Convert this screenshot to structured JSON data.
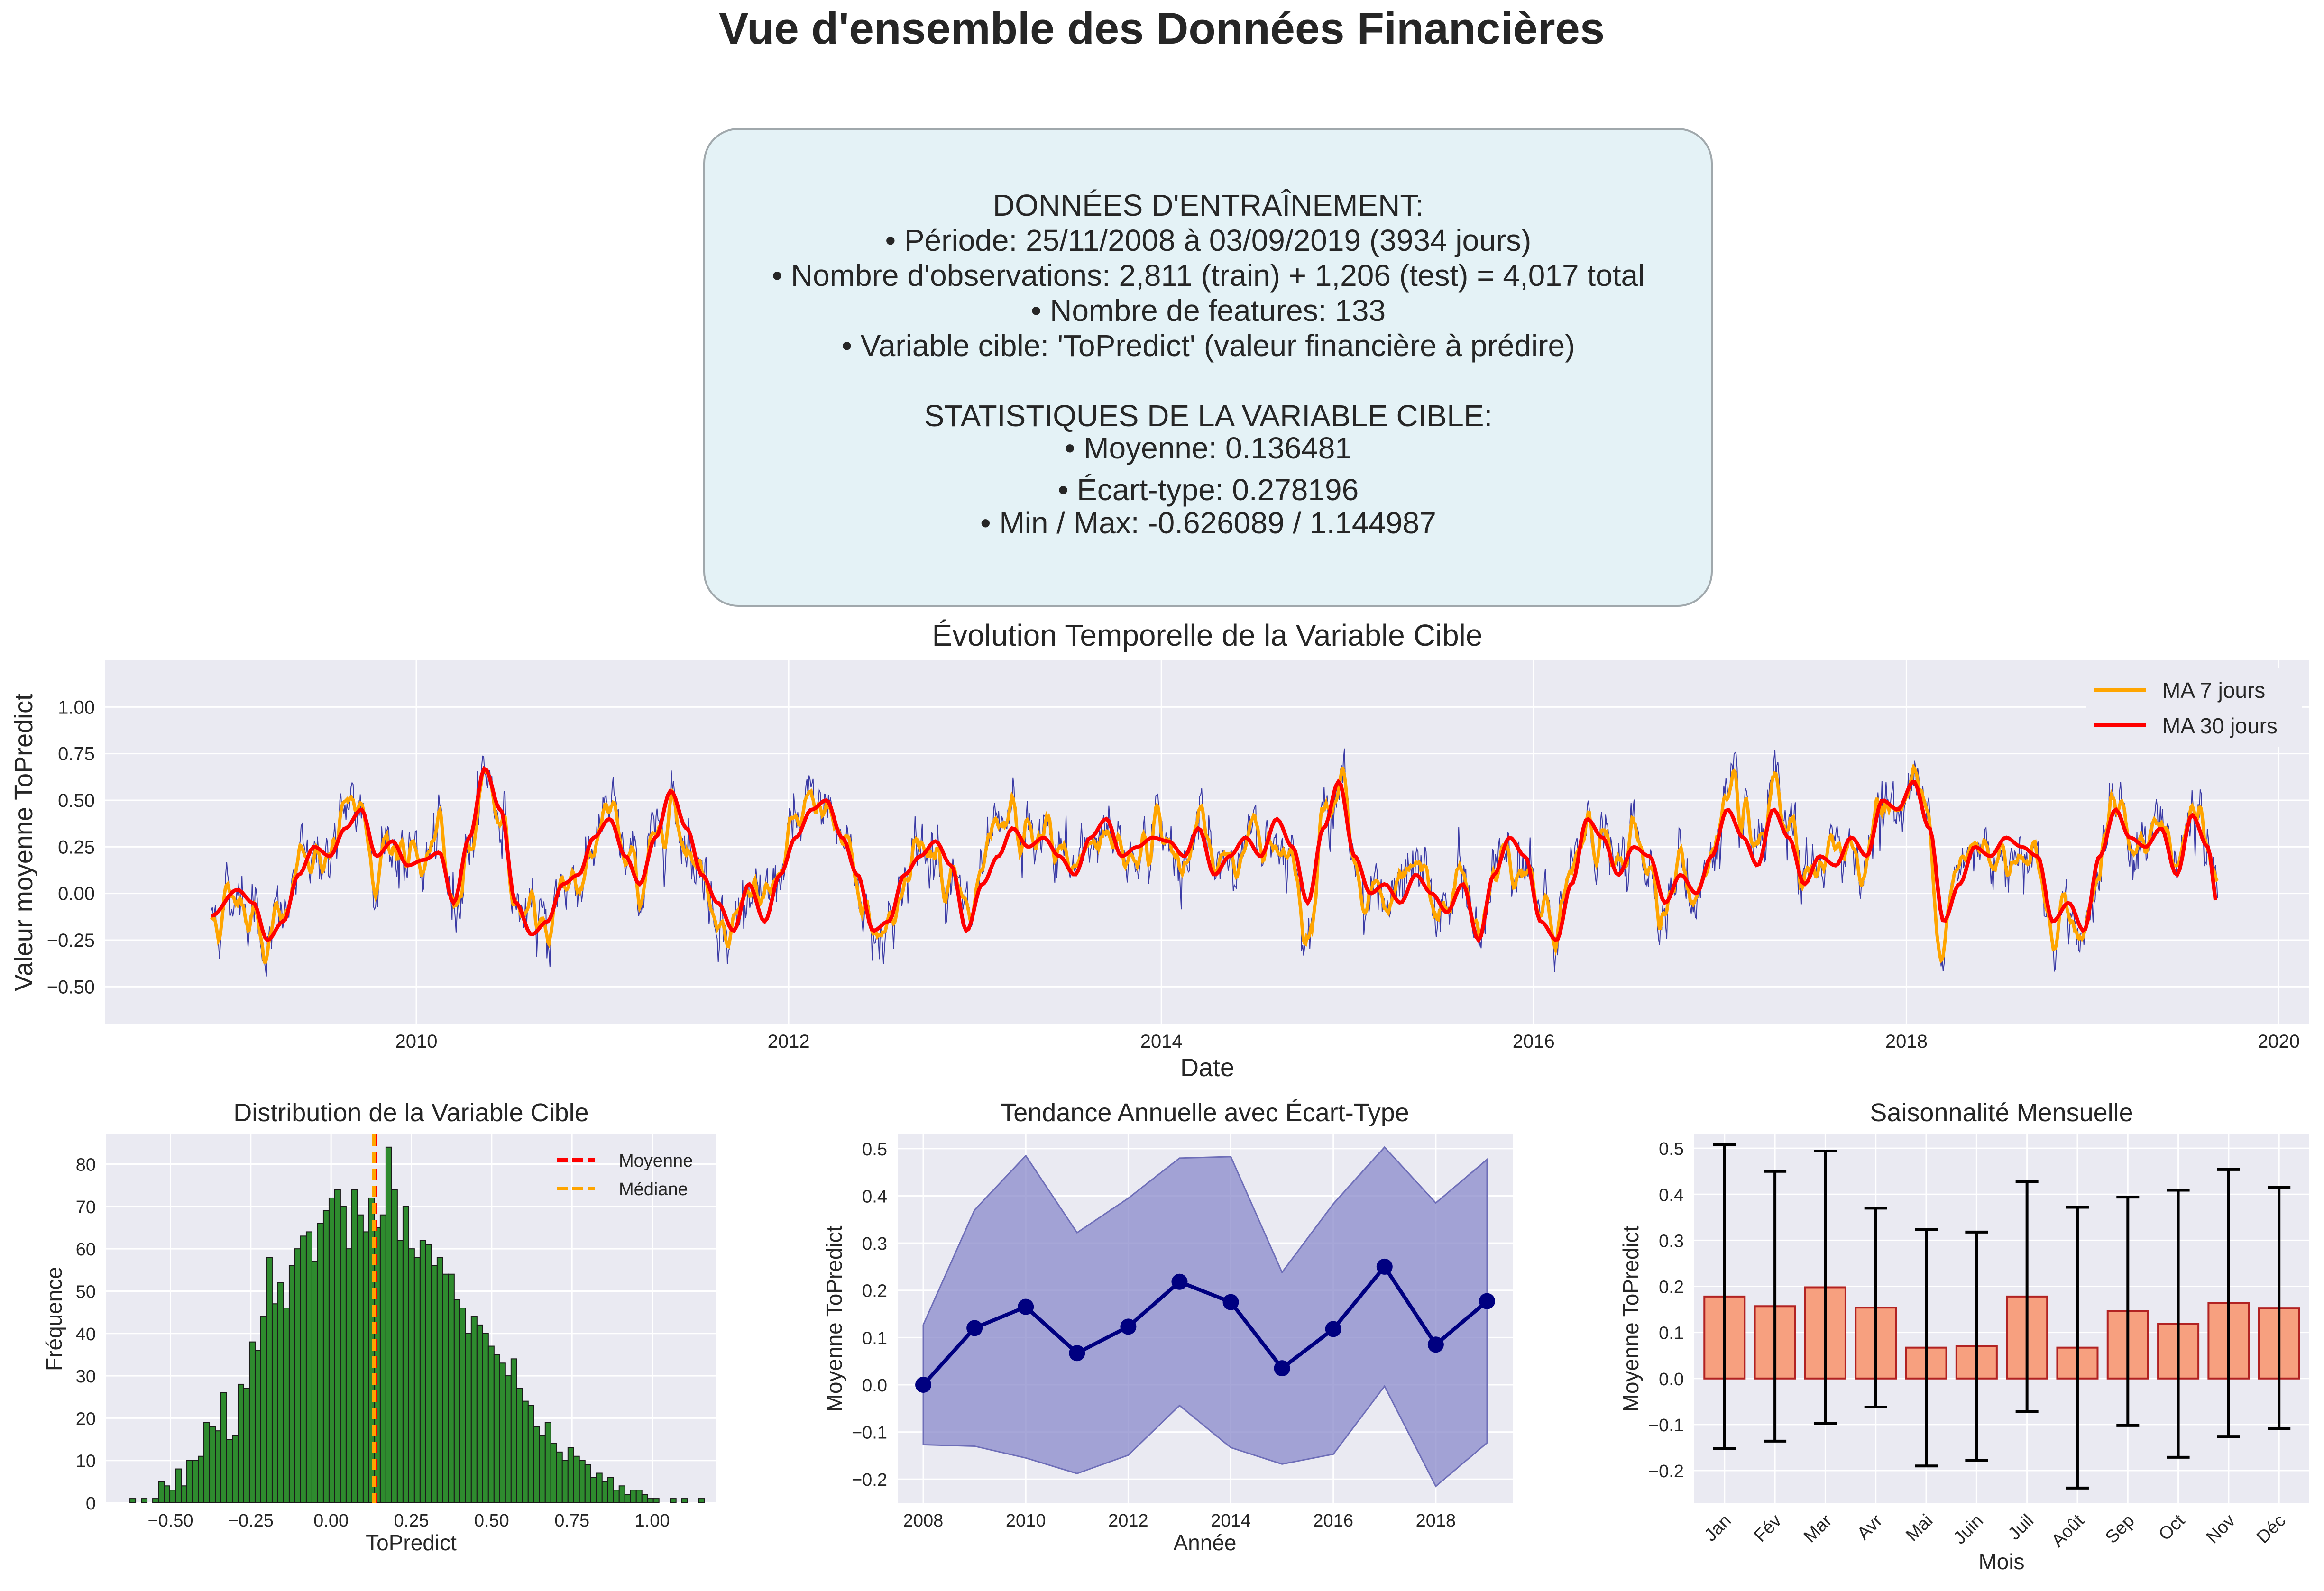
{
  "page_title": "Vue d'ensemble des Données Financières",
  "info_box": {
    "lines": [
      "DONNÉES D'ENTRAÎNEMENT:",
      "• Période: 25/11/2008 à 03/09/2019 (3934 jours)",
      "• Nombre d'observations: 2,811 (train) + 1,206 (test) = 4,017 total",
      "• Nombre de features: 133",
      "• Variable cible: 'ToPredict' (valeur financière à prédire)",
      "",
      "STATISTIQUES DE LA VARIABLE CIBLE:",
      "• Moyenne: 0.136481",
      "• Écart-type: 0.278196",
      "• Min / Max: -0.626089 / 1.144987"
    ],
    "background": "#e4f2f6"
  },
  "chart_data": [
    {
      "type": "line",
      "title": "Évolution Temporelle de la Variable Cible",
      "xlabel": "Date",
      "ylabel": "Valeur moyenne ToPredict",
      "xlim": [
        "2008-05-01",
        "2020-03-01"
      ],
      "ylim": [
        -0.7,
        1.25
      ],
      "x_ticks": [
        "2010",
        "2012",
        "2014",
        "2016",
        "2018",
        "2020"
      ],
      "y_ticks": [
        -0.5,
        -0.25,
        0.0,
        0.25,
        0.5,
        0.75,
        1.0
      ],
      "y_tick_labels": [
        "−0.50",
        "−0.25",
        "0.00",
        "0.25",
        "0.50",
        "0.75",
        "1.00"
      ],
      "x_start": "2008-11-25",
      "x_end": "2019-09-03",
      "grid": true,
      "legend": "top-right",
      "series": [
        {
          "color": "#00008b"
        },
        {
          "name": "MA 7 jours",
          "color": "#ffa500"
        },
        {
          "name": "MA 30 jours",
          "color": "#ff0000"
        }
      ],
      "ma30_points": [
        [
          "2008-12",
          -0.12
        ],
        [
          "2009-01",
          0.02
        ],
        [
          "2009-02",
          -0.05
        ],
        [
          "2009-03",
          -0.25
        ],
        [
          "2009-04",
          -0.15
        ],
        [
          "2009-05",
          0.1
        ],
        [
          "2009-06",
          0.25
        ],
        [
          "2009-07",
          0.2
        ],
        [
          "2009-08",
          0.35
        ],
        [
          "2009-09",
          0.45
        ],
        [
          "2009-10",
          0.2
        ],
        [
          "2009-11",
          0.28
        ],
        [
          "2009-12",
          0.15
        ],
        [
          "2010-01",
          0.18
        ],
        [
          "2010-02",
          0.22
        ],
        [
          "2010-03",
          -0.05
        ],
        [
          "2010-04",
          0.3
        ],
        [
          "2010-05",
          0.67
        ],
        [
          "2010-06",
          0.45
        ],
        [
          "2010-07",
          -0.05
        ],
        [
          "2010-08",
          -0.22
        ],
        [
          "2010-09",
          -0.15
        ],
        [
          "2010-10",
          0.05
        ],
        [
          "2010-11",
          0.1
        ],
        [
          "2010-12",
          0.3
        ],
        [
          "2011-01",
          0.4
        ],
        [
          "2011-02",
          0.2
        ],
        [
          "2011-03",
          0.05
        ],
        [
          "2011-04",
          0.3
        ],
        [
          "2011-05",
          0.55
        ],
        [
          "2011-06",
          0.35
        ],
        [
          "2011-07",
          0.1
        ],
        [
          "2011-08",
          -0.05
        ],
        [
          "2011-09",
          -0.2
        ],
        [
          "2011-10",
          0.05
        ],
        [
          "2011-11",
          -0.15
        ],
        [
          "2011-12",
          0.1
        ],
        [
          "2012-01",
          0.3
        ],
        [
          "2012-02",
          0.45
        ],
        [
          "2012-03",
          0.5
        ],
        [
          "2012-04",
          0.3
        ],
        [
          "2012-05",
          0.1
        ],
        [
          "2012-06",
          -0.2
        ],
        [
          "2012-07",
          -0.15
        ],
        [
          "2012-08",
          0.1
        ],
        [
          "2012-09",
          0.2
        ],
        [
          "2012-10",
          0.28
        ],
        [
          "2012-11",
          0.15
        ],
        [
          "2012-12",
          -0.2
        ],
        [
          "2013-01",
          0.05
        ],
        [
          "2013-02",
          0.2
        ],
        [
          "2013-03",
          0.35
        ],
        [
          "2013-04",
          0.25
        ],
        [
          "2013-05",
          0.3
        ],
        [
          "2013-06",
          0.2
        ],
        [
          "2013-07",
          0.1
        ],
        [
          "2013-08",
          0.3
        ],
        [
          "2013-09",
          0.4
        ],
        [
          "2013-10",
          0.2
        ],
        [
          "2013-11",
          0.25
        ],
        [
          "2013-12",
          0.3
        ],
        [
          "2014-01",
          0.28
        ],
        [
          "2014-02",
          0.2
        ],
        [
          "2014-03",
          0.35
        ],
        [
          "2014-04",
          0.1
        ],
        [
          "2014-05",
          0.2
        ],
        [
          "2014-06",
          0.3
        ],
        [
          "2014-07",
          0.2
        ],
        [
          "2014-08",
          0.4
        ],
        [
          "2014-09",
          0.25
        ],
        [
          "2014-10",
          -0.05
        ],
        [
          "2014-11",
          0.35
        ],
        [
          "2014-12",
          0.6
        ],
        [
          "2015-01",
          0.2
        ],
        [
          "2015-02",
          0.0
        ],
        [
          "2015-03",
          0.05
        ],
        [
          "2015-04",
          -0.05
        ],
        [
          "2015-05",
          0.1
        ],
        [
          "2015-06",
          0.0
        ],
        [
          "2015-07",
          -0.1
        ],
        [
          "2015-08",
          0.05
        ],
        [
          "2015-09",
          -0.25
        ],
        [
          "2015-10",
          0.1
        ],
        [
          "2015-11",
          0.3
        ],
        [
          "2015-12",
          0.2
        ],
        [
          "2016-01",
          -0.15
        ],
        [
          "2016-02",
          -0.25
        ],
        [
          "2016-03",
          0.05
        ],
        [
          "2016-04",
          0.4
        ],
        [
          "2016-05",
          0.3
        ],
        [
          "2016-06",
          0.1
        ],
        [
          "2016-07",
          0.25
        ],
        [
          "2016-08",
          0.2
        ],
        [
          "2016-09",
          -0.05
        ],
        [
          "2016-10",
          0.1
        ],
        [
          "2016-11",
          0.0
        ],
        [
          "2016-12",
          0.2
        ],
        [
          "2017-01",
          0.45
        ],
        [
          "2017-02",
          0.3
        ],
        [
          "2017-03",
          0.15
        ],
        [
          "2017-04",
          0.45
        ],
        [
          "2017-05",
          0.3
        ],
        [
          "2017-06",
          0.05
        ],
        [
          "2017-07",
          0.2
        ],
        [
          "2017-08",
          0.15
        ],
        [
          "2017-09",
          0.3
        ],
        [
          "2017-10",
          0.2
        ],
        [
          "2017-11",
          0.5
        ],
        [
          "2017-12",
          0.45
        ],
        [
          "2018-01",
          0.6
        ],
        [
          "2018-02",
          0.35
        ],
        [
          "2018-03",
          -0.15
        ],
        [
          "2018-04",
          0.05
        ],
        [
          "2018-05",
          0.25
        ],
        [
          "2018-06",
          0.2
        ],
        [
          "2018-07",
          0.3
        ],
        [
          "2018-08",
          0.25
        ],
        [
          "2018-09",
          0.2
        ],
        [
          "2018-10",
          -0.15
        ],
        [
          "2018-11",
          -0.05
        ],
        [
          "2018-12",
          -0.2
        ],
        [
          "2019-01",
          0.2
        ],
        [
          "2019-02",
          0.45
        ],
        [
          "2019-03",
          0.3
        ],
        [
          "2019-04",
          0.25
        ],
        [
          "2019-05",
          0.35
        ],
        [
          "2019-06",
          0.1
        ],
        [
          "2019-07",
          0.42
        ],
        [
          "2019-08",
          0.25
        ],
        [
          "2019-09",
          -0.07
        ]
      ]
    },
    {
      "type": "bar",
      "title": "Distribution de la Variable Cible",
      "xlabel": "ToPredict",
      "ylabel": "Fréquence",
      "xlim": [
        -0.7,
        1.2
      ],
      "ylim": [
        0,
        87
      ],
      "x_ticks": [
        -0.5,
        -0.25,
        0.0,
        0.25,
        0.5,
        0.75,
        1.0
      ],
      "x_tick_labels": [
        "−0.50",
        "−0.25",
        "0.00",
        "0.25",
        "0.50",
        "0.75",
        "1.00"
      ],
      "y_ticks": [
        0,
        10,
        20,
        30,
        40,
        50,
        60,
        70,
        80
      ],
      "bin_start": -0.626089,
      "bin_width": 0.01771,
      "counts": [
        1,
        0,
        1,
        0,
        1,
        5,
        4,
        3,
        8,
        4,
        10,
        10,
        11,
        19,
        18,
        17,
        26,
        15,
        16,
        28,
        27,
        38,
        36,
        44,
        58,
        47,
        52,
        46,
        56,
        60,
        63,
        64,
        57,
        66,
        69,
        72,
        74,
        70,
        60,
        74,
        68,
        64,
        72,
        65,
        68,
        84,
        74,
        62,
        70,
        60,
        58,
        62,
        61,
        56,
        58,
        54,
        54,
        48,
        46,
        40,
        44,
        42,
        40,
        37,
        35,
        33,
        30,
        34,
        27,
        24,
        23,
        18,
        16,
        19,
        14,
        12,
        10,
        13,
        11,
        10,
        9,
        6,
        7,
        5,
        6,
        3,
        4,
        2,
        3,
        3,
        2,
        1,
        1,
        0,
        0,
        1,
        0,
        1,
        0,
        0,
        1
      ],
      "bar_color": "#2e8b2e",
      "lines": [
        {
          "name": "Moyenne",
          "value": 0.136481,
          "color": "#ff0000"
        },
        {
          "name": "Médiane",
          "value": 0.133,
          "color": "#ffa500"
        }
      ],
      "legend": "top-right",
      "grid": true
    },
    {
      "type": "line",
      "title": "Tendance Annuelle avec Écart-Type",
      "xlabel": "Année",
      "ylabel": "Moyenne ToPredict",
      "xlim": [
        2007.5,
        2019.5
      ],
      "ylim": [
        -0.25,
        0.53
      ],
      "x_ticks": [
        2008,
        2010,
        2012,
        2014,
        2016,
        2018
      ],
      "y_ticks": [
        -0.2,
        -0.1,
        0.0,
        0.1,
        0.2,
        0.3,
        0.4,
        0.5
      ],
      "y_tick_labels": [
        "−0.2",
        "−0.1",
        "0.0",
        "0.1",
        "0.2",
        "0.3",
        "0.4",
        "0.5"
      ],
      "x": [
        2008,
        2009,
        2010,
        2011,
        2012,
        2013,
        2014,
        2015,
        2016,
        2017,
        2018,
        2019
      ],
      "mean": [
        0.0,
        0.12,
        0.165,
        0.067,
        0.123,
        0.218,
        0.175,
        0.035,
        0.118,
        0.25,
        0.085,
        0.177
      ],
      "upper": [
        0.127,
        0.37,
        0.485,
        0.322,
        0.395,
        0.48,
        0.483,
        0.238,
        0.383,
        0.503,
        0.385,
        0.477
      ],
      "lower": [
        -0.127,
        -0.13,
        -0.155,
        -0.188,
        -0.149,
        -0.044,
        -0.133,
        -0.168,
        -0.147,
        -0.003,
        -0.215,
        -0.123
      ],
      "line_color": "#000080",
      "band_color": "#8a8acb",
      "grid": true
    },
    {
      "type": "bar",
      "title": "Saisonnalité Mensuelle",
      "xlabel": "Mois",
      "ylabel": "Moyenne ToPredict",
      "ylim": [
        -0.27,
        0.53
      ],
      "y_ticks": [
        -0.2,
        -0.1,
        0.0,
        0.1,
        0.2,
        0.3,
        0.4,
        0.5
      ],
      "y_tick_labels": [
        "−0.2",
        "−0.1",
        "0.0",
        "0.1",
        "0.2",
        "0.3",
        "0.4",
        "0.5"
      ],
      "categories": [
        "Jan",
        "Fév",
        "Mar",
        "Avr",
        "Mai",
        "Juin",
        "Juil",
        "Août",
        "Sep",
        "Oct",
        "Nov",
        "Déc"
      ],
      "values": [
        0.178,
        0.157,
        0.198,
        0.154,
        0.067,
        0.07,
        0.178,
        0.067,
        0.146,
        0.119,
        0.164,
        0.153
      ],
      "errors": [
        0.33,
        0.293,
        0.296,
        0.216,
        0.257,
        0.248,
        0.25,
        0.305,
        0.248,
        0.29,
        0.29,
        0.262
      ],
      "bar_color": "#f7a07f",
      "edge_color": "#b22222",
      "grid": true
    }
  ]
}
